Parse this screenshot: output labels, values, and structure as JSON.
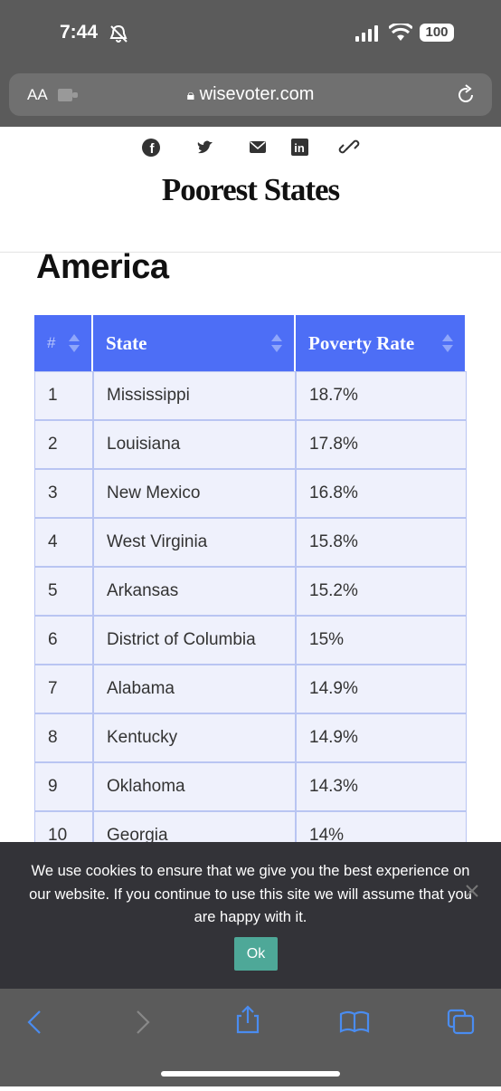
{
  "status_bar": {
    "time": "7:44",
    "battery": "100"
  },
  "browser": {
    "text_size": "AA",
    "url": "wisevoter.com"
  },
  "header": {
    "title": "Poorest States"
  },
  "article": {
    "heading": "America"
  },
  "table": {
    "columns": [
      "#",
      "State",
      "Poverty Rate"
    ],
    "rows": [
      [
        "1",
        "Mississippi",
        "18.7%"
      ],
      [
        "2",
        "Louisiana",
        "17.8%"
      ],
      [
        "3",
        "New Mexico",
        "16.8%"
      ],
      [
        "4",
        "West Virginia",
        "15.8%"
      ],
      [
        "5",
        "Arkansas",
        "15.2%"
      ],
      [
        "6",
        "District of Columbia",
        "15%"
      ],
      [
        "7",
        "Alabama",
        "14.9%"
      ],
      [
        "8",
        "Kentucky",
        "14.9%"
      ],
      [
        "9",
        "Oklahoma",
        "14.3%"
      ],
      [
        "10",
        "Georgia",
        "14%"
      ]
    ]
  },
  "cookie_banner": {
    "message": "We use cookies to ensure that we give you the best experience on our website. If you continue to use this site we will assume that you are happy with it.",
    "button": "Ok"
  }
}
